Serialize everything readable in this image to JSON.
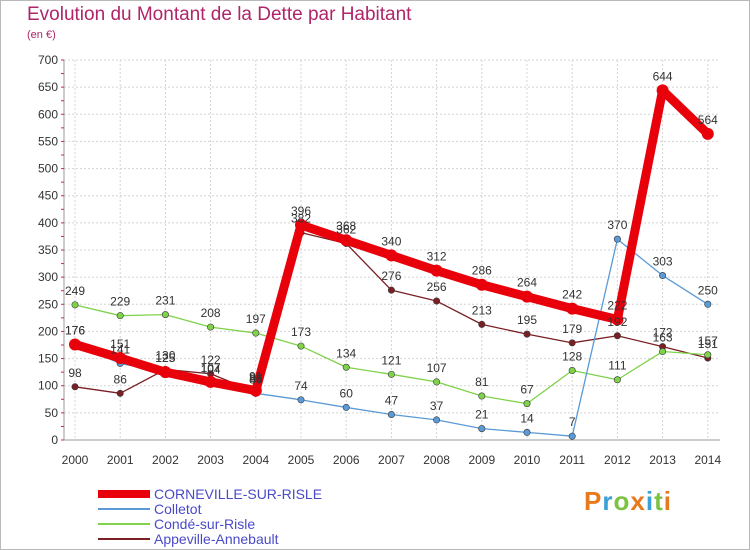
{
  "header": {
    "title": "Evolution du Montant de la Dette par Habitant",
    "unit": "(en €)"
  },
  "logo": {
    "text": "Proxiti",
    "colors": [
      "#e87a1e",
      "#3aa0d8",
      "#7cc242",
      "#e87a1e",
      "#3aa0d8",
      "#7cc242",
      "#e87a1e"
    ]
  },
  "chart_data": {
    "type": "line",
    "title": "Evolution du Montant de la Dette par Habitant",
    "ylabel": "(en €)",
    "xlabel": "",
    "ylim": [
      0,
      700
    ],
    "yticks": [
      0,
      50,
      100,
      150,
      200,
      250,
      300,
      350,
      400,
      450,
      500,
      550,
      600,
      650,
      700
    ],
    "categories": [
      "2000",
      "2001",
      "2002",
      "2003",
      "2004",
      "2005",
      "2006",
      "2007",
      "2008",
      "2009",
      "2010",
      "2011",
      "2012",
      "2013",
      "2014"
    ],
    "grid": true,
    "legend_position": "bottom-left",
    "series": [
      {
        "name": "CORNEVILLE-SUR-RISLE",
        "color": "#e8000b",
        "values": [
          176,
          151,
          125,
          107,
          91,
          396,
          368,
          340,
          312,
          286,
          264,
          242,
          222,
          644,
          564
        ]
      },
      {
        "name": "Colletot",
        "color": "#5a9ad6",
        "values": [
          176,
          141,
          125,
          104,
          86,
          74,
          60,
          47,
          37,
          21,
          14,
          7,
          370,
          303,
          250
        ]
      },
      {
        "name": "Condé-sur-Risle",
        "color": "#7fd24a",
        "values": [
          249,
          229,
          231,
          208,
          197,
          173,
          134,
          121,
          107,
          81,
          67,
          128,
          111,
          163,
          157
        ]
      },
      {
        "name": "Appeville-Annebault",
        "color": "#7a1f24",
        "values": [
          98,
          86,
          130,
          122,
          88,
          382,
          362,
          276,
          256,
          213,
          195,
          179,
          192,
          172,
          151
        ]
      }
    ]
  }
}
